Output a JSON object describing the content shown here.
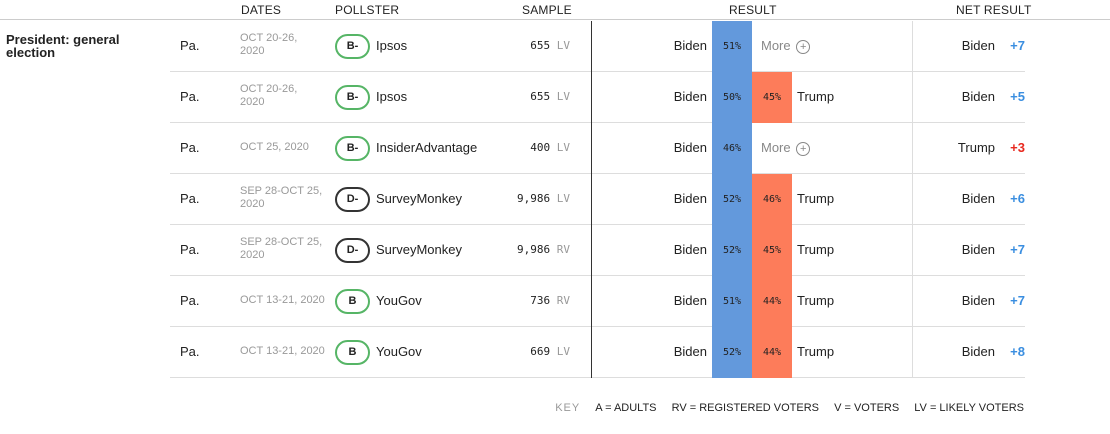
{
  "header": {
    "dates": "DATES",
    "pollster": "POLLSTER",
    "sample": "SAMPLE",
    "result": "RESULT",
    "net_result": "NET RESULT"
  },
  "section_title": "President: general election",
  "more_label": "More",
  "rows": [
    {
      "state": "Pa.",
      "dates": [
        "OCT 20-26,",
        "2020"
      ],
      "grade": "B-",
      "pollster": "Ipsos",
      "sample": "655",
      "pop": "LV",
      "biden": "Biden",
      "biden_pct": "51%",
      "trump": "",
      "trump_pct": "",
      "more": true,
      "net_name": "Biden",
      "net_val": "+7",
      "net_color": "#3a8ee0"
    },
    {
      "state": "Pa.",
      "dates": [
        "OCT 20-26,",
        "2020"
      ],
      "grade": "B-",
      "pollster": "Ipsos",
      "sample": "655",
      "pop": "LV",
      "biden": "Biden",
      "biden_pct": "50%",
      "trump": "Trump",
      "trump_pct": "45%",
      "more": false,
      "net_name": "Biden",
      "net_val": "+5",
      "net_color": "#3a8ee0"
    },
    {
      "state": "Pa.",
      "dates": [
        "OCT 25, 2020"
      ],
      "grade": "B-",
      "pollster": "InsiderAdvantage",
      "sample": "400",
      "pop": "LV",
      "biden": "Biden",
      "biden_pct": "46%",
      "trump": "",
      "trump_pct": "",
      "more": true,
      "net_name": "Trump",
      "net_val": "+3",
      "net_color": "#e8281e"
    },
    {
      "state": "Pa.",
      "dates": [
        "SEP 28-OCT 25,",
        "2020"
      ],
      "grade": "D-",
      "pollster": "SurveyMonkey",
      "sample": "9,986",
      "pop": "LV",
      "biden": "Biden",
      "biden_pct": "52%",
      "trump": "Trump",
      "trump_pct": "46%",
      "more": false,
      "net_name": "Biden",
      "net_val": "+6",
      "net_color": "#3a8ee0"
    },
    {
      "state": "Pa.",
      "dates": [
        "SEP 28-OCT 25,",
        "2020"
      ],
      "grade": "D-",
      "pollster": "SurveyMonkey",
      "sample": "9,986",
      "pop": "RV",
      "biden": "Biden",
      "biden_pct": "52%",
      "trump": "Trump",
      "trump_pct": "45%",
      "more": false,
      "net_name": "Biden",
      "net_val": "+7",
      "net_color": "#3a8ee0"
    },
    {
      "state": "Pa.",
      "dates": [
        "OCT 13-21, 2020"
      ],
      "grade": "B",
      "pollster": "YouGov",
      "sample": "736",
      "pop": "RV",
      "biden": "Biden",
      "biden_pct": "51%",
      "trump": "Trump",
      "trump_pct": "44%",
      "more": false,
      "net_name": "Biden",
      "net_val": "+7",
      "net_color": "#3a8ee0"
    },
    {
      "state": "Pa.",
      "dates": [
        "OCT 13-21, 2020"
      ],
      "grade": "B",
      "pollster": "YouGov",
      "sample": "669",
      "pop": "LV",
      "biden": "Biden",
      "biden_pct": "52%",
      "trump": "Trump",
      "trump_pct": "44%",
      "more": false,
      "net_name": "Biden",
      "net_val": "+8",
      "net_color": "#3a8ee0"
    }
  ],
  "key": {
    "label": "KEY",
    "items": [
      "A = ADULTS",
      "RV = REGISTERED VOTERS",
      "V = VOTERS",
      "LV = LIKELY VOTERS"
    ]
  },
  "colors": {
    "biden_bar": "#6399dc",
    "trump_bar": "#fd7c5a",
    "grade_good": "#56b566",
    "grade_bad": "#333333"
  }
}
